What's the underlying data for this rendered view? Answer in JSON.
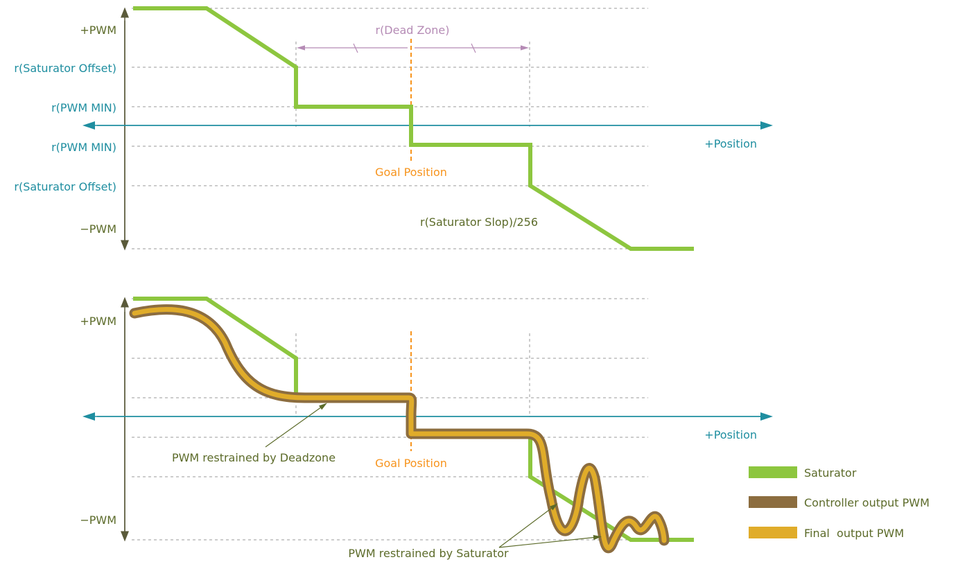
{
  "colors": {
    "saturator": "#8dc63f",
    "controller": "#8c6d3f",
    "final": "#e0ac2a",
    "axis_y": "#5a5a3a",
    "axis_x": "#1f8ea0",
    "goal": "#f7941d",
    "dead_zone": "#b58bb5",
    "label_teal": "#1f8ea0",
    "label_olive": "#5c6b2a",
    "grid": "#999999"
  },
  "top": {
    "y_labels": {
      "pwm_pos": "+PWM",
      "sat_offset_pos": "r(Saturator Offset)",
      "pwm_min_pos": "r(PWM MIN)",
      "pwm_min_neg": "r(PWM MIN)",
      "sat_offset_neg": "r(Saturator Offset)",
      "pwm_neg": "−PWM"
    },
    "x_axis_label": "+Position",
    "goal_label": "Goal Position",
    "dead_zone_label": "r(Dead Zone)",
    "slope_label": "r(Saturator Slop)/256"
  },
  "bottom": {
    "y_labels": {
      "pwm_pos": "+PWM",
      "pwm_neg": "−PWM"
    },
    "x_axis_label": "+Position",
    "goal_label": "Goal Position",
    "deadzone_note": "PWM restrained by Deadzone",
    "saturator_note": "PWM restrained by Saturator"
  },
  "legend": {
    "items": [
      {
        "label": "Saturator",
        "color_key": "saturator"
      },
      {
        "label": "Controller output PWM",
        "color_key": "controller"
      },
      {
        "label": "Final  output PWM",
        "color_key": "final"
      }
    ]
  }
}
